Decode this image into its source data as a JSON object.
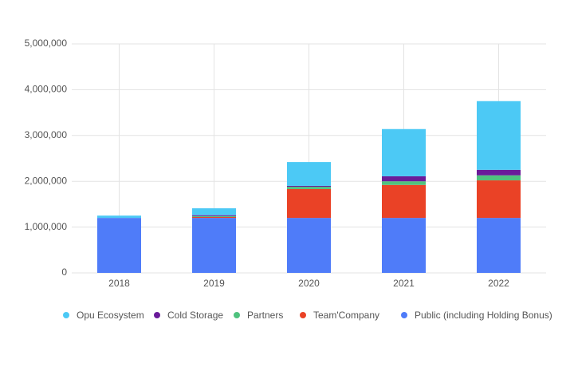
{
  "chart_data": {
    "type": "stacked-bar",
    "categories": [
      "2018",
      "2019",
      "2020",
      "2021",
      "2022"
    ],
    "series": [
      {
        "name": "Opu Ecosystem",
        "color": "#4cc9f5",
        "values": [
          50000,
          150000,
          520000,
          1030000,
          1500000
        ]
      },
      {
        "name": "Cold Storage",
        "color": "#6a1b9a",
        "values": [
          0,
          20000,
          20000,
          110000,
          120000
        ]
      },
      {
        "name": "Partners",
        "color": "#4fc27e",
        "values": [
          0,
          20000,
          50000,
          80000,
          110000
        ]
      },
      {
        "name": "Team'Company",
        "color": "#ea4226",
        "values": [
          0,
          20000,
          630000,
          720000,
          820000
        ]
      },
      {
        "name": "Public (including Holding Bonus)",
        "color": "#4f7cf9",
        "values": [
          1200000,
          1200000,
          1200000,
          1200000,
          1200000
        ]
      }
    ],
    "ylim": [
      0,
      5000000
    ],
    "yticks": [
      0,
      {
        "value": 1000000,
        "label": "1,000,000"
      },
      {
        "value": 2000000,
        "label": "2,000,000"
      },
      {
        "value": 3000000,
        "label": "3,000,000"
      },
      {
        "value": 4000000,
        "label": "4,000,000"
      },
      {
        "value": 5000000,
        "label": "5,000,000"
      }
    ],
    "grid": true
  }
}
